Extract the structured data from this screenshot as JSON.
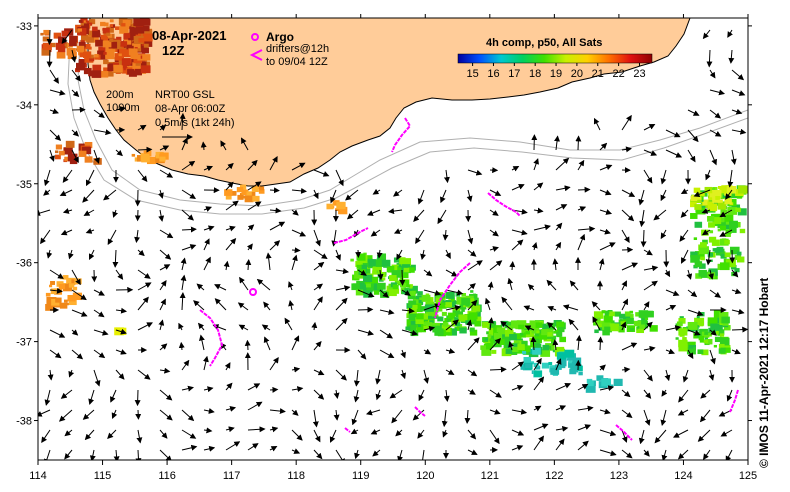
{
  "title": {
    "date": "08-Apr-2021",
    "hour": "12Z"
  },
  "legend": {
    "argo_label": "Argo",
    "drifters_label": "drifters@12h",
    "drifters_sub": "to 09/04 12Z",
    "isobath_200": "200m",
    "isobath_1000": "1000m",
    "product_line1": "NRT00 GSL",
    "product_line2": "08-Apr 06:00Z",
    "scale_label": "0.5m/s (1kt 24h)",
    "argo_color": "#ff00ff",
    "drifter_color": "#ff00ff"
  },
  "colorbar": {
    "title": "4h comp, p50, All Sats",
    "ticks": [
      "15",
      "16",
      "17",
      "18",
      "19",
      "20",
      "21",
      "22",
      "23"
    ],
    "min": 14.3,
    "max": 23.6,
    "stops": [
      "#0000a0",
      "#0050ff",
      "#00c8d0",
      "#00d060",
      "#40e000",
      "#c8f000",
      "#ffd000",
      "#ff7000",
      "#e01010",
      "#900000"
    ]
  },
  "axes": {
    "x_ticks": [
      "114",
      "115",
      "116",
      "117",
      "118",
      "119",
      "120",
      "121",
      "122",
      "123",
      "124",
      "125"
    ],
    "y_ticks": [
      "-33",
      "-34",
      "-35",
      "-36",
      "-37",
      "-38"
    ],
    "lon_range": [
      114,
      125
    ],
    "lat_range": [
      -38.5,
      -32.9
    ]
  },
  "colors": {
    "land": "#ffcc99",
    "ocean": "#ffffff",
    "isobath": "#b0b0b0"
  },
  "credit": "© IMOS 11-Apr-2021 12:17 Hobart"
}
